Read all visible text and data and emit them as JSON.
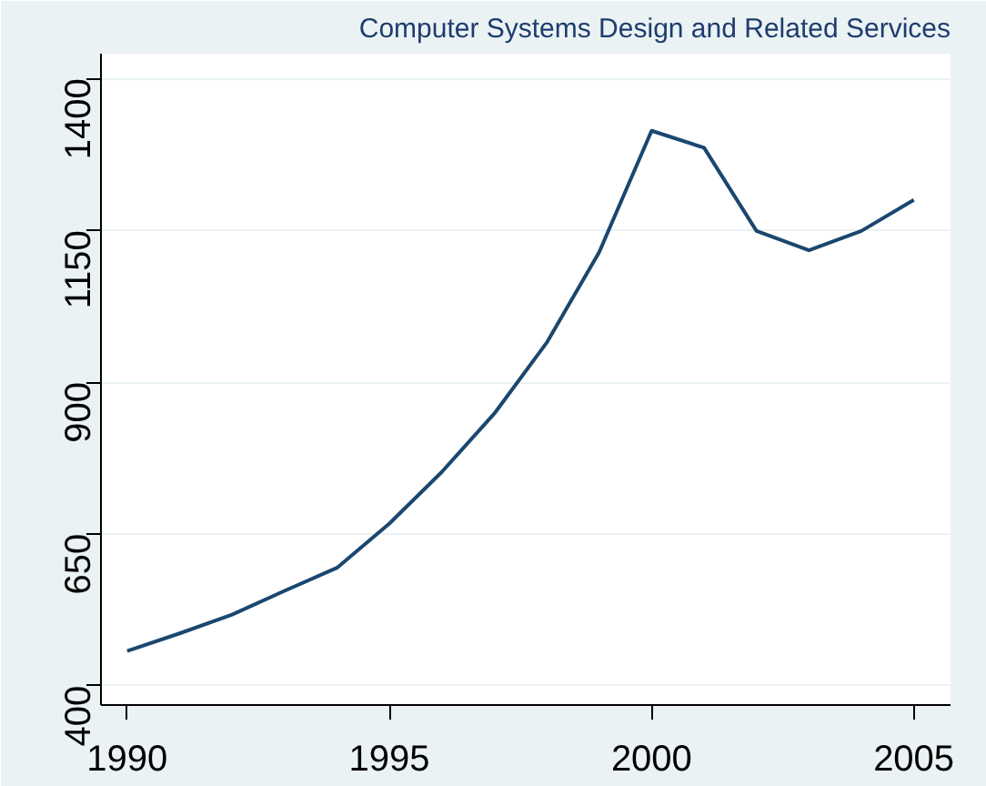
{
  "chart_data": {
    "type": "line",
    "title": "Computer Systems Design and Related Services",
    "x": [
      1990,
      1991,
      1992,
      1993,
      1994,
      1995,
      1996,
      1997,
      1998,
      1999,
      2000,
      2001,
      2002,
      2003,
      2004,
      2005
    ],
    "series": [
      {
        "color": "#1a476f",
        "values": [
          457,
          486,
          517,
          556,
          594,
          667,
          752,
          848,
          965,
          1114,
          1314,
          1286,
          1149,
          1117,
          1149,
          1200
        ]
      }
    ],
    "xlim": [
      1989.5,
      2005.7
    ],
    "ylim": [
      368,
      1441
    ],
    "xticks": [
      1990,
      1995,
      2000,
      2005
    ],
    "yticks": [
      400,
      650,
      900,
      1150,
      1400
    ],
    "grid": "y"
  }
}
